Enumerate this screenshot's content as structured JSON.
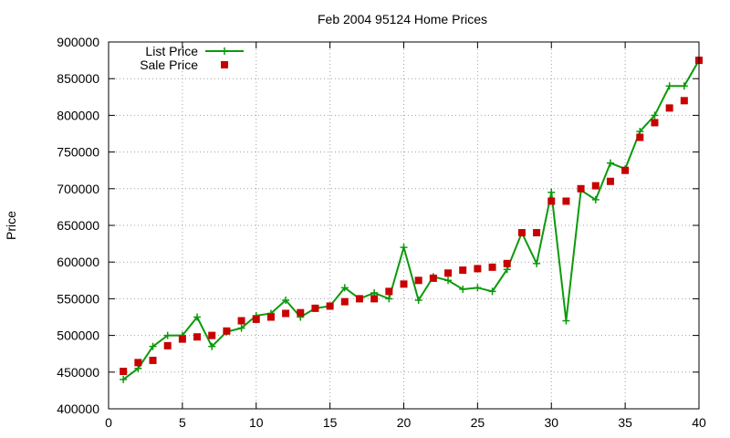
{
  "chart_data": {
    "type": "line",
    "title": "Feb 2004 95124 Home Prices",
    "xlabel": "",
    "ylabel": "Price",
    "xlim": [
      0,
      40
    ],
    "ylim": [
      400000,
      900000
    ],
    "x_ticks": [
      0,
      5,
      10,
      15,
      20,
      25,
      30,
      35,
      40
    ],
    "y_ticks": [
      400000,
      450000,
      500000,
      550000,
      600000,
      650000,
      700000,
      750000,
      800000,
      850000,
      900000
    ],
    "x_tick_labels": [
      "0",
      "5",
      "10",
      "15",
      "20",
      "25",
      "30",
      "35",
      "40"
    ],
    "y_tick_labels": [
      "400000",
      "450000",
      "500000",
      "550000",
      "600000",
      "650000",
      "700000",
      "750000",
      "800000",
      "850000",
      "900000"
    ],
    "grid": true,
    "legend_position": "top-left",
    "x": [
      1,
      2,
      3,
      4,
      5,
      6,
      7,
      8,
      9,
      10,
      11,
      12,
      13,
      14,
      15,
      16,
      17,
      18,
      19,
      20,
      21,
      22,
      23,
      24,
      25,
      26,
      27,
      28,
      29,
      30,
      31,
      32,
      33,
      34,
      35,
      36,
      37,
      38,
      39,
      40
    ],
    "series": [
      {
        "name": "List Price",
        "style": "linespoints",
        "color": "#0b9a0b",
        "marker": "plus",
        "values": [
          440000,
          455000,
          485000,
          500000,
          500000,
          525000,
          485000,
          505000,
          510000,
          527000,
          530000,
          548000,
          525000,
          537000,
          540000,
          565000,
          550000,
          558000,
          550000,
          620000,
          548000,
          580000,
          575000,
          563000,
          565000,
          560000,
          590000,
          640000,
          598000,
          695000,
          520000,
          698000,
          685000,
          735000,
          727000,
          778000,
          800000,
          840000,
          840000,
          875000
        ]
      },
      {
        "name": "Sale Price",
        "style": "points",
        "color": "#c80000",
        "marker": "square",
        "values": [
          451000,
          463000,
          466000,
          486000,
          495000,
          498000,
          500000,
          506000,
          520000,
          522000,
          525000,
          530000,
          531000,
          537000,
          540000,
          546000,
          550000,
          550000,
          560000,
          570000,
          575000,
          578000,
          585000,
          589000,
          591000,
          593000,
          598000,
          640000,
          640000,
          683000,
          683000,
          700000,
          704000,
          710000,
          725000,
          770000,
          790000,
          810000,
          820000,
          875000
        ]
      }
    ]
  }
}
